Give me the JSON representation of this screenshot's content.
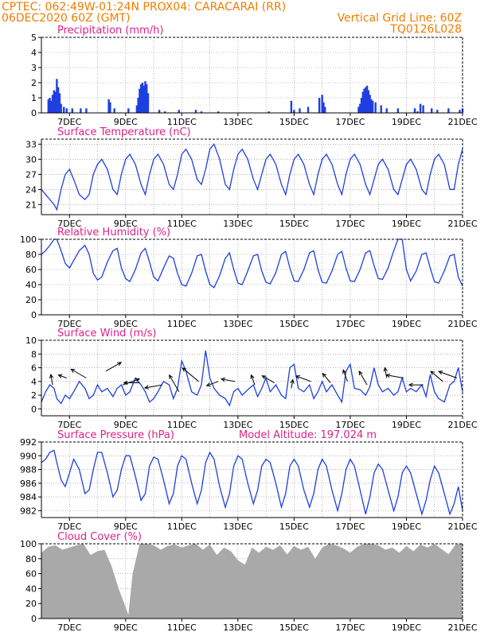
{
  "header": {
    "line1_left": "CPTEC:   062:49W-01:24N   PROX04: CARACARAI (RR)",
    "line2_left": "06DEC2020 60Z (GMT)",
    "line2_right": "Vertical Grid Line: 60Z",
    "line3_right": "TQ0126L028"
  },
  "colors": {
    "header": "#f07c00",
    "panel_title": "#e0208a",
    "series": "#1f3fe0",
    "cloud": "#a9a9a9",
    "grid": "#888888"
  },
  "chart_data": [
    {
      "id": "precipitation",
      "type": "bar",
      "title": "Precipitation (mm/h)",
      "ylim": [
        0,
        5
      ],
      "yticks": [
        "0",
        "1",
        "2",
        "3",
        "4",
        "5"
      ],
      "xlim": [
        6.0,
        21.0
      ],
      "xticks": [
        "7DEC",
        "9DEC",
        "11DEC",
        "13DEC",
        "15DEC",
        "17DEC",
        "19DEC",
        "21DEC"
      ],
      "grid": true,
      "color": "#1f3fe0",
      "x": [
        6.25,
        6.3,
        6.35,
        6.4,
        6.45,
        6.5,
        6.55,
        6.6,
        6.65,
        6.7,
        6.8,
        6.9,
        7.1,
        7.4,
        7.6,
        8.4,
        8.45,
        8.6,
        9.1,
        9.4,
        9.45,
        9.5,
        9.55,
        9.6,
        9.65,
        9.7,
        9.75,
        9.8,
        10.2,
        10.4,
        10.9,
        11.5,
        11.7,
        12.3,
        14.1,
        14.9,
        15.0,
        15.2,
        15.5,
        15.9,
        16.0,
        16.05,
        16.1,
        17.3,
        17.35,
        17.4,
        17.45,
        17.5,
        17.55,
        17.6,
        17.65,
        17.7,
        17.75,
        17.8,
        17.9,
        18.1,
        18.3,
        18.7,
        19.3,
        19.4,
        19.5,
        19.6,
        19.9,
        20.1,
        20.5,
        20.9,
        21.0
      ],
      "values": [
        0.9,
        1.0,
        0.8,
        1.2,
        1.5,
        1.4,
        2.25,
        1.7,
        1.3,
        0.6,
        0.4,
        0.3,
        0.3,
        0.3,
        0.3,
        0.9,
        0.7,
        0.3,
        0.3,
        0.5,
        1.0,
        1.6,
        1.9,
        2.0,
        1.8,
        2.1,
        1.9,
        1.3,
        0.2,
        0.1,
        0.2,
        0.2,
        0.1,
        0.1,
        0.1,
        0.8,
        0.2,
        0.3,
        0.4,
        1.0,
        1.2,
        0.7,
        0.4,
        0.4,
        0.6,
        1.0,
        1.4,
        1.6,
        1.7,
        1.8,
        1.5,
        1.2,
        0.9,
        0.8,
        0.7,
        0.5,
        0.3,
        0.3,
        0.3,
        0.1,
        0.6,
        0.5,
        0.3,
        0.2,
        0.3,
        0.2,
        0.3
      ]
    },
    {
      "id": "temperature",
      "type": "line",
      "title": "Surface Temperature (nC)",
      "ylim": [
        19,
        34
      ],
      "yticks": [
        "21",
        "24",
        "27",
        "30",
        "33"
      ],
      "xlim": [
        6.0,
        21.0
      ],
      "xticks": [
        "7DEC",
        "9DEC",
        "11DEC",
        "13DEC",
        "15DEC",
        "17DEC",
        "19DEC",
        "21DEC"
      ],
      "grid": true,
      "color": "#1f3fe0",
      "x": [
        6.0,
        6.15,
        6.3,
        6.45,
        6.55,
        6.7,
        6.85,
        7.0,
        7.15,
        7.35,
        7.55,
        7.7,
        7.85,
        8.0,
        8.15,
        8.35,
        8.55,
        8.7,
        8.85,
        9.0,
        9.15,
        9.35,
        9.55,
        9.7,
        9.85,
        10.0,
        10.15,
        10.35,
        10.55,
        10.7,
        10.85,
        11.0,
        11.15,
        11.35,
        11.55,
        11.7,
        11.85,
        12.0,
        12.15,
        12.35,
        12.55,
        12.7,
        12.85,
        13.0,
        13.15,
        13.35,
        13.55,
        13.7,
        13.85,
        14.0,
        14.15,
        14.35,
        14.55,
        14.7,
        14.85,
        15.0,
        15.15,
        15.35,
        15.55,
        15.7,
        15.85,
        16.0,
        16.15,
        16.35,
        16.55,
        16.7,
        16.85,
        17.0,
        17.15,
        17.35,
        17.55,
        17.7,
        17.85,
        18.0,
        18.15,
        18.35,
        18.55,
        18.7,
        18.85,
        19.0,
        19.15,
        19.35,
        19.55,
        19.7,
        19.85,
        20.0,
        20.15,
        20.35,
        20.55,
        20.7,
        20.85,
        21.0
      ],
      "values": [
        24,
        23,
        22,
        21,
        20,
        24,
        27,
        28,
        26,
        23,
        22,
        23,
        27,
        29,
        30,
        28,
        24,
        23,
        27,
        30,
        31,
        29,
        25,
        23,
        27,
        30,
        31,
        29,
        25,
        24,
        27,
        31,
        32,
        30,
        26,
        25,
        28,
        32,
        33,
        30,
        25,
        24,
        28,
        31,
        32,
        30,
        26,
        24,
        27,
        30,
        31,
        29,
        25,
        23,
        27,
        30,
        31,
        29,
        25,
        23,
        27,
        30,
        31,
        29,
        25,
        23,
        27,
        30,
        31,
        29,
        25,
        23,
        26,
        29,
        30,
        28,
        24,
        23,
        26,
        29,
        30,
        28,
        24,
        23,
        27,
        30,
        31,
        29,
        24,
        24,
        29,
        32
      ]
    },
    {
      "id": "humidity",
      "type": "line",
      "title": "Relative Humidity (%)",
      "ylim": [
        0,
        100
      ],
      "yticks": [
        "0",
        "20",
        "40",
        "60",
        "80",
        "100"
      ],
      "xlim": [
        6.0,
        21.0
      ],
      "xticks": [
        "7DEC",
        "9DEC",
        "11DEC",
        "13DEC",
        "15DEC",
        "17DEC",
        "19DEC",
        "21DEC"
      ],
      "grid": true,
      "color": "#1f3fe0",
      "x": [
        6.0,
        6.15,
        6.3,
        6.45,
        6.55,
        6.7,
        6.85,
        7.0,
        7.15,
        7.35,
        7.55,
        7.7,
        7.85,
        8.0,
        8.15,
        8.35,
        8.55,
        8.7,
        8.85,
        9.0,
        9.15,
        9.35,
        9.55,
        9.7,
        9.85,
        10.0,
        10.15,
        10.35,
        10.55,
        10.7,
        10.85,
        11.0,
        11.15,
        11.35,
        11.55,
        11.7,
        11.85,
        12.0,
        12.15,
        12.35,
        12.55,
        12.7,
        12.85,
        13.0,
        13.15,
        13.35,
        13.55,
        13.7,
        13.85,
        14.0,
        14.15,
        14.35,
        14.55,
        14.7,
        14.85,
        15.0,
        15.15,
        15.35,
        15.55,
        15.7,
        15.85,
        16.0,
        16.15,
        16.35,
        16.55,
        16.7,
        16.85,
        17.0,
        17.15,
        17.35,
        17.55,
        17.7,
        17.85,
        18.0,
        18.15,
        18.35,
        18.55,
        18.7,
        18.85,
        19.0,
        19.15,
        19.35,
        19.55,
        19.7,
        19.85,
        20.0,
        20.15,
        20.35,
        20.55,
        20.7,
        20.85,
        21.0
      ],
      "values": [
        80,
        85,
        92,
        100,
        100,
        85,
        68,
        62,
        72,
        85,
        92,
        80,
        55,
        46,
        50,
        70,
        85,
        88,
        62,
        48,
        44,
        60,
        82,
        88,
        70,
        50,
        45,
        62,
        78,
        75,
        55,
        40,
        38,
        55,
        78,
        80,
        58,
        40,
        36,
        52,
        75,
        82,
        60,
        42,
        40,
        58,
        78,
        80,
        58,
        43,
        41,
        56,
        80,
        84,
        62,
        45,
        44,
        60,
        82,
        85,
        60,
        43,
        42,
        58,
        80,
        84,
        62,
        45,
        44,
        60,
        82,
        85,
        65,
        48,
        47,
        62,
        85,
        100,
        100,
        60,
        45,
        58,
        80,
        82,
        62,
        44,
        42,
        58,
        78,
        80,
        50,
        38
      ]
    },
    {
      "id": "wind",
      "type": "line",
      "title": "Surface Wind (m/s)",
      "ylim": [
        -1,
        10
      ],
      "yticks": [
        "0",
        "2",
        "4",
        "6",
        "8",
        "10"
      ],
      "xlim": [
        6.0,
        21.0
      ],
      "xticks": [
        "7DEC",
        "9DEC",
        "11DEC",
        "13DEC",
        "15DEC",
        "17DEC",
        "19DEC",
        "21DEC"
      ],
      "grid": true,
      "color": "#1f3fe0",
      "x": [
        6.0,
        6.15,
        6.3,
        6.45,
        6.55,
        6.7,
        6.85,
        7.0,
        7.15,
        7.35,
        7.55,
        7.7,
        7.85,
        8.0,
        8.15,
        8.35,
        8.55,
        8.7,
        8.85,
        9.0,
        9.15,
        9.35,
        9.55,
        9.7,
        9.85,
        10.0,
        10.15,
        10.35,
        10.55,
        10.7,
        10.85,
        11.0,
        11.15,
        11.35,
        11.55,
        11.7,
        11.85,
        12.0,
        12.15,
        12.35,
        12.55,
        12.7,
        12.85,
        13.0,
        13.15,
        13.35,
        13.55,
        13.7,
        13.85,
        14.0,
        14.15,
        14.35,
        14.55,
        14.7,
        14.85,
        15.0,
        15.15,
        15.35,
        15.55,
        15.7,
        15.85,
        16.0,
        16.15,
        16.35,
        16.55,
        16.7,
        16.85,
        17.0,
        17.15,
        17.35,
        17.55,
        17.7,
        17.85,
        18.0,
        18.15,
        18.35,
        18.55,
        18.7,
        18.85,
        19.0,
        19.15,
        19.35,
        19.55,
        19.7,
        19.85,
        20.0,
        20.15,
        20.35,
        20.55,
        20.7,
        20.85,
        21.0
      ],
      "values": [
        1.0,
        2.5,
        3.5,
        3.0,
        1.5,
        0.8,
        2.0,
        1.5,
        2.5,
        4.0,
        3.0,
        1.5,
        2.0,
        3.5,
        2.5,
        3.0,
        1.8,
        3.0,
        3.5,
        2.0,
        2.5,
        4.5,
        3.5,
        2.5,
        1.0,
        1.5,
        2.5,
        4.0,
        3.5,
        1.5,
        3.0,
        7.0,
        5.5,
        2.5,
        2.0,
        3.5,
        8.5,
        4.5,
        3.0,
        2.0,
        1.5,
        0.5,
        2.5,
        3.0,
        2.0,
        2.8,
        3.5,
        1.8,
        3.0,
        4.5,
        2.5,
        3.5,
        2.0,
        1.5,
        6.0,
        6.5,
        3.0,
        2.5,
        3.5,
        1.5,
        2.5,
        4.0,
        2.5,
        3.5,
        2.0,
        1.0,
        5.5,
        6.5,
        3.0,
        2.8,
        2.0,
        3.2,
        6.0,
        3.5,
        2.5,
        3.0,
        2.0,
        2.5,
        4.5,
        2.5,
        3.0,
        2.5,
        3.5,
        1.8,
        5.0,
        2.5,
        1.5,
        1.0,
        3.5,
        4.0,
        6.0,
        2.5
      ]
    },
    {
      "id": "pressure",
      "type": "line",
      "title": "Surface Pressure (hPa)",
      "annotation": "Model Altitude: 197.024  m",
      "ylim": [
        981,
        992
      ],
      "yticks": [
        "982",
        "984",
        "986",
        "988",
        "990",
        "992"
      ],
      "xlim": [
        6.0,
        21.0
      ],
      "xticks": [
        "7DEC",
        "9DEC",
        "11DEC",
        "13DEC",
        "15DEC",
        "17DEC",
        "19DEC",
        "21DEC"
      ],
      "grid": true,
      "color": "#1f3fe0",
      "x": [
        6.0,
        6.15,
        6.3,
        6.45,
        6.55,
        6.7,
        6.85,
        7.0,
        7.15,
        7.35,
        7.55,
        7.7,
        7.85,
        8.0,
        8.15,
        8.35,
        8.55,
        8.7,
        8.85,
        9.0,
        9.15,
        9.35,
        9.55,
        9.7,
        9.85,
        10.0,
        10.15,
        10.35,
        10.55,
        10.7,
        10.85,
        11.0,
        11.15,
        11.35,
        11.55,
        11.7,
        11.85,
        12.0,
        12.15,
        12.35,
        12.55,
        12.7,
        12.85,
        13.0,
        13.15,
        13.35,
        13.55,
        13.7,
        13.85,
        14.0,
        14.15,
        14.35,
        14.55,
        14.7,
        14.85,
        15.0,
        15.15,
        15.35,
        15.55,
        15.7,
        15.85,
        16.0,
        16.15,
        16.35,
        16.55,
        16.7,
        16.85,
        17.0,
        17.15,
        17.35,
        17.55,
        17.7,
        17.85,
        18.0,
        18.15,
        18.35,
        18.55,
        18.7,
        18.85,
        19.0,
        19.15,
        19.35,
        19.55,
        19.7,
        19.85,
        20.0,
        20.15,
        20.35,
        20.55,
        20.7,
        20.85,
        21.0
      ],
      "values": [
        989,
        989.5,
        990.5,
        990.8,
        989,
        986.5,
        985.5,
        987.5,
        989.5,
        988,
        984.5,
        985,
        988,
        990.5,
        990.5,
        987.5,
        984,
        985,
        988,
        990,
        990,
        987,
        983.5,
        984.5,
        988.5,
        989.8,
        989.5,
        986.5,
        983,
        984.5,
        988.5,
        990,
        989.5,
        986,
        983,
        985,
        989,
        990.5,
        989.5,
        985.5,
        982.5,
        984.5,
        988.5,
        990,
        989.5,
        986,
        983,
        985,
        988.5,
        989.5,
        989,
        986,
        982.5,
        984.5,
        988.5,
        989.5,
        988.5,
        985,
        982.5,
        984.5,
        988,
        989.5,
        988.5,
        985,
        982,
        984.5,
        988,
        989.5,
        988.5,
        985,
        981.5,
        984,
        987.5,
        988.8,
        988,
        985,
        982,
        984,
        987.5,
        988.5,
        987.5,
        984.5,
        981.5,
        983.5,
        986.5,
        988.5,
        987.5,
        984.5,
        981.5,
        983,
        985.5,
        982
      ]
    },
    {
      "id": "cloud_cover",
      "type": "area",
      "title": "Cloud Cover (%)",
      "ylim": [
        0,
        100
      ],
      "yticks": [
        "0",
        "20",
        "40",
        "60",
        "80",
        "100"
      ],
      "xlim": [
        6.0,
        21.0
      ],
      "xticks": [
        "7DEC",
        "9DEC",
        "11DEC",
        "13DEC",
        "15DEC",
        "17DEC",
        "19DEC",
        "21DEC"
      ],
      "grid": true,
      "color": "#a9a9a9",
      "x": [
        6.0,
        6.25,
        6.5,
        6.75,
        7.0,
        7.25,
        7.5,
        7.75,
        8.0,
        8.25,
        8.5,
        8.75,
        9.0,
        9.1,
        9.25,
        9.5,
        9.75,
        10.0,
        10.25,
        10.5,
        10.75,
        11.0,
        11.25,
        11.5,
        11.75,
        12.0,
        12.25,
        12.5,
        12.75,
        13.0,
        13.25,
        13.5,
        13.75,
        14.0,
        14.25,
        14.5,
        14.75,
        15.0,
        15.25,
        15.5,
        15.75,
        16.0,
        16.25,
        16.5,
        16.75,
        17.0,
        17.25,
        17.5,
        17.75,
        18.0,
        18.25,
        18.5,
        18.75,
        19.0,
        19.25,
        19.5,
        19.75,
        20.0,
        20.25,
        20.5,
        20.75,
        21.0
      ],
      "values": [
        88,
        96,
        98,
        92,
        95,
        98,
        100,
        85,
        90,
        92,
        70,
        40,
        15,
        5,
        60,
        100,
        100,
        98,
        92,
        97,
        99,
        95,
        98,
        100,
        92,
        99,
        85,
        95,
        90,
        78,
        72,
        95,
        88,
        96,
        92,
        98,
        86,
        97,
        92,
        96,
        80,
        95,
        100,
        98,
        94,
        88,
        96,
        100,
        100,
        98,
        92,
        95,
        88,
        97,
        90,
        99,
        95,
        100,
        93,
        86,
        99,
        100
      ]
    }
  ],
  "wind_vectors": {
    "comment_none": "",
    "x": [
      6.4,
      6.9,
      7.6,
      8.3,
      8.9,
      9.5,
      10.3,
      10.9,
      11.6,
      12.3,
      12.9,
      13.6,
      14.3,
      14.9,
      15.6,
      16.3,
      16.9,
      17.6,
      18.3,
      18.9,
      19.6,
      20.3,
      20.8
    ],
    "y": [
      3.5,
      4.5,
      4.5,
      5.5,
      3.5,
      3.8,
      3.5,
      2.5,
      4.0,
      4.0,
      4.0,
      3.5,
      3.8,
      3.0,
      4.0,
      3.8,
      4.0,
      3.5,
      4.5,
      4.5,
      3.5,
      4.0,
      4.5
    ],
    "angle_deg": [
      100,
      160,
      150,
      30,
      20,
      180,
      190,
      120,
      140,
      200,
      170,
      110,
      150,
      80,
      160,
      130,
      110,
      120,
      100,
      170,
      180,
      140,
      160
    ],
    "speed": [
      1.2,
      1.0,
      2.0,
      2.0,
      2.0,
      1.8,
      2.0,
      2.2,
      2.4,
      1.4,
      1.6,
      1.2,
      1.6,
      1.0,
      1.8,
      1.4,
      1.4,
      1.8,
      1.2,
      2.0,
      1.6,
      1.8,
      2.2
    ]
  }
}
